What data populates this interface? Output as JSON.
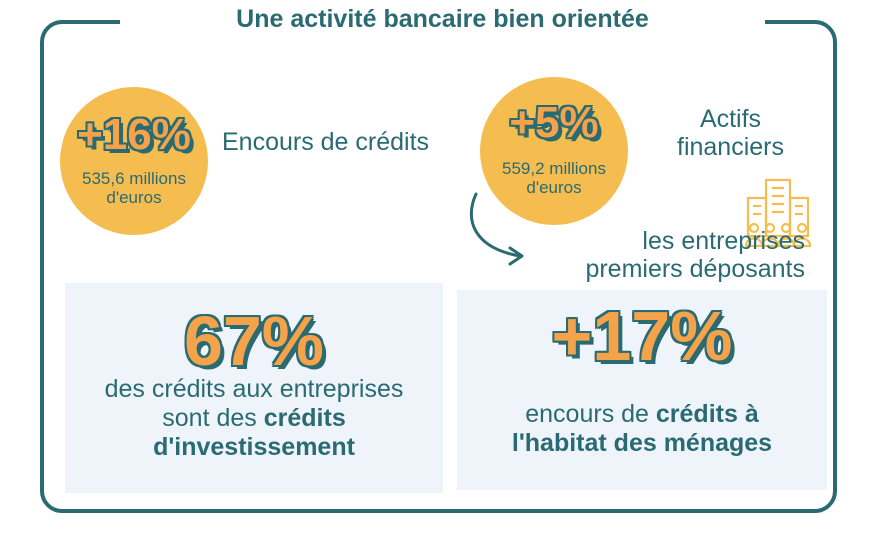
{
  "title": "Une activité bancaire bien orientée",
  "stat1": {
    "value": "+16%",
    "sub_line1": "535,6 millions",
    "sub_line2": "d'euros",
    "label": "Encours de crédits"
  },
  "stat2": {
    "value": "+5%",
    "sub_line1": "559,2 millions",
    "sub_line2": "d'euros",
    "label_line1": "Actifs",
    "label_line2": "financiers"
  },
  "note": {
    "line1": "les entreprises",
    "line2": "premiers déposants"
  },
  "panel1": {
    "value": "67%",
    "line1": "des crédits aux entreprises",
    "line2_pre": "sont des ",
    "line2_bold": "crédits",
    "line3_bold": "d'investissement"
  },
  "panel2": {
    "value": "+17%",
    "line1_pre": "encours de ",
    "line1_bold": "crédits à",
    "line2_bold": "l'habitat des ménages"
  },
  "colors": {
    "teal": "#2a6b73",
    "yellow": "#f5bd50",
    "orange": "#f4a34a",
    "panel": "#eef4fa"
  },
  "icons": [
    "curved-arrow-icon",
    "buildings-people-icon"
  ]
}
